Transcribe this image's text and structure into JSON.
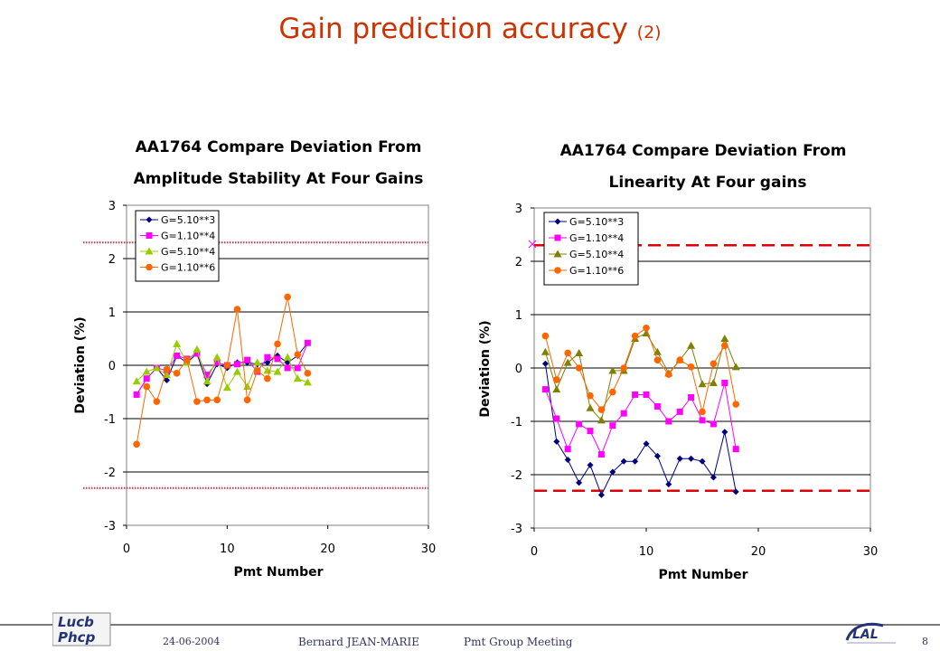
{
  "slide": {
    "title": "Gain prediction accuracy",
    "title_suffix": "(2)",
    "date": "24-06-2004",
    "author": "Bernard JEAN-MARIE",
    "meeting": "Pmt Group Meeting",
    "page_number": "8",
    "logo_left_text": "Lucb Phcp",
    "logo_right_text": "LAL"
  },
  "chart_data": [
    {
      "type": "line",
      "title_lines": [
        "AA1764 Compare Deviation From",
        "Amplitude Stability At Four Gains"
      ],
      "xlabel": "Pmt Number",
      "ylabel": "Deviation (%)",
      "xlim": [
        0,
        30
      ],
      "ylim": [
        -3,
        3
      ],
      "xticks": [
        0,
        10,
        20,
        30
      ],
      "yticks": [
        3,
        2,
        1,
        0,
        -1,
        -2,
        -3
      ],
      "grid": "horizontal",
      "legend_position": "top-left",
      "reference_lines": [
        2.3,
        -2.3
      ],
      "reference_style": "dotted",
      "x": [
        1,
        2,
        3,
        4,
        5,
        6,
        7,
        8,
        9,
        10,
        11,
        12,
        13,
        14,
        15,
        16,
        17,
        18
      ],
      "series": [
        {
          "name": "G=5.10**3",
          "marker": "diamond",
          "color": "#000080",
          "values": [
            -0.55,
            -0.25,
            -0.05,
            -0.28,
            0.18,
            0.05,
            0.22,
            -0.35,
            0.02,
            -0.05,
            0.05,
            0.05,
            0.02,
            0.05,
            0.18,
            0.05,
            0.18,
            0.42
          ]
        },
        {
          "name": "G=1.10**4",
          "marker": "square",
          "color": "#ff00ff",
          "values": [
            -0.55,
            -0.25,
            -0.05,
            -0.1,
            0.18,
            0.12,
            0.22,
            -0.18,
            0.05,
            0.0,
            0.02,
            0.1,
            -0.12,
            0.15,
            0.12,
            -0.05,
            -0.05,
            0.42
          ]
        },
        {
          "name": "G=5.10**4",
          "marker": "triangle",
          "color": "#99cc00",
          "values": [
            -0.3,
            -0.12,
            -0.05,
            -0.18,
            0.4,
            0.05,
            0.3,
            -0.3,
            0.15,
            -0.42,
            -0.12,
            -0.4,
            0.05,
            -0.1,
            -0.12,
            0.15,
            -0.25,
            -0.32
          ]
        },
        {
          "name": "G=1.10**6",
          "marker": "circle",
          "color": "#ff6600",
          "values": [
            -1.48,
            -0.4,
            -0.68,
            -0.08,
            -0.15,
            0.1,
            -0.68,
            -0.65,
            -0.65,
            0.0,
            1.05,
            -0.65,
            -0.1,
            -0.25,
            0.4,
            1.28,
            0.2,
            -0.15
          ]
        }
      ]
    },
    {
      "type": "line",
      "title_lines": [
        "AA1764 Compare Deviation From",
        "Linearity At Four gains"
      ],
      "xlabel": "Pmt Number",
      "ylabel": "Deviation (%)",
      "xlim": [
        0,
        30
      ],
      "ylim": [
        -3,
        3
      ],
      "xticks": [
        0,
        10,
        20,
        30
      ],
      "yticks": [
        3,
        2,
        1,
        0,
        -1,
        -2,
        -3
      ],
      "grid": "horizontal",
      "legend_position": "top-left",
      "reference_lines": [
        2.3,
        -2.3
      ],
      "reference_style": "dashed",
      "x": [
        1,
        2,
        3,
        4,
        5,
        6,
        7,
        8,
        9,
        10,
        11,
        12,
        13,
        14,
        15,
        16,
        17,
        18
      ],
      "series": [
        {
          "name": "G=5.10**3",
          "marker": "diamond",
          "color": "#000080",
          "values": [
            0.08,
            -1.38,
            -1.72,
            -2.15,
            -1.82,
            -2.38,
            -1.95,
            -1.75,
            -1.75,
            -1.42,
            -1.65,
            -2.18,
            -1.7,
            -1.7,
            -1.75,
            -2.05,
            -1.2,
            -2.32
          ]
        },
        {
          "name": "G=1.10**4",
          "marker": "square",
          "color": "#ff00ff",
          "values": [
            -0.4,
            -0.95,
            -1.52,
            -1.05,
            -1.18,
            -1.62,
            -1.08,
            -0.85,
            -0.5,
            -0.5,
            -0.72,
            -1.0,
            -0.82,
            -0.55,
            -0.98,
            -1.05,
            -0.28,
            -1.52
          ]
        },
        {
          "name": "G=5.10**4",
          "marker": "triangle",
          "color": "#808000",
          "values": [
            0.3,
            -0.4,
            0.1,
            0.28,
            -0.75,
            -0.98,
            -0.05,
            -0.05,
            0.55,
            0.65,
            0.3,
            -0.1,
            0.15,
            0.42,
            -0.3,
            -0.28,
            0.55,
            0.02
          ]
        },
        {
          "name": "G=1.10**6",
          "marker": "circle",
          "color": "#ff6600",
          "values": [
            0.6,
            -0.22,
            0.28,
            0.0,
            -0.52,
            -0.78,
            -0.45,
            0.0,
            0.6,
            0.75,
            0.15,
            -0.12,
            0.15,
            0.02,
            -0.82,
            0.08,
            0.42,
            -0.68
          ]
        }
      ]
    }
  ]
}
